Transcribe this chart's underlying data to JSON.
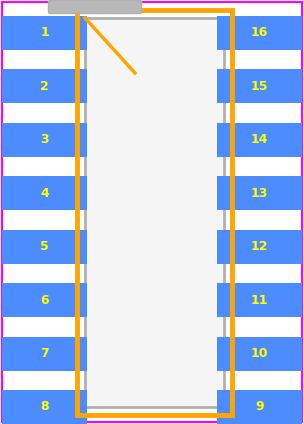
{
  "bg_color": "#ffffff",
  "pad_fill": "#4d8cff",
  "outline_color": "#ffa500",
  "pin1_marker_color": "#ffa500",
  "pin_label_color": "#ffff00",
  "courtyard_color": "#ff00ff",
  "body_stroke": "#b0b0b0",
  "body_fill": "#f5f5f5",
  "tab_fill": "#b8b8b8",
  "left_pins": [
    1,
    2,
    3,
    4,
    5,
    6,
    7,
    8
  ],
  "right_pins": [
    16,
    15,
    14,
    13,
    12,
    11,
    10,
    9
  ],
  "fig_width": 3.04,
  "fig_height": 4.24,
  "dpi": 100,
  "font_size": 9,
  "pad_label_color": "#ffff00"
}
